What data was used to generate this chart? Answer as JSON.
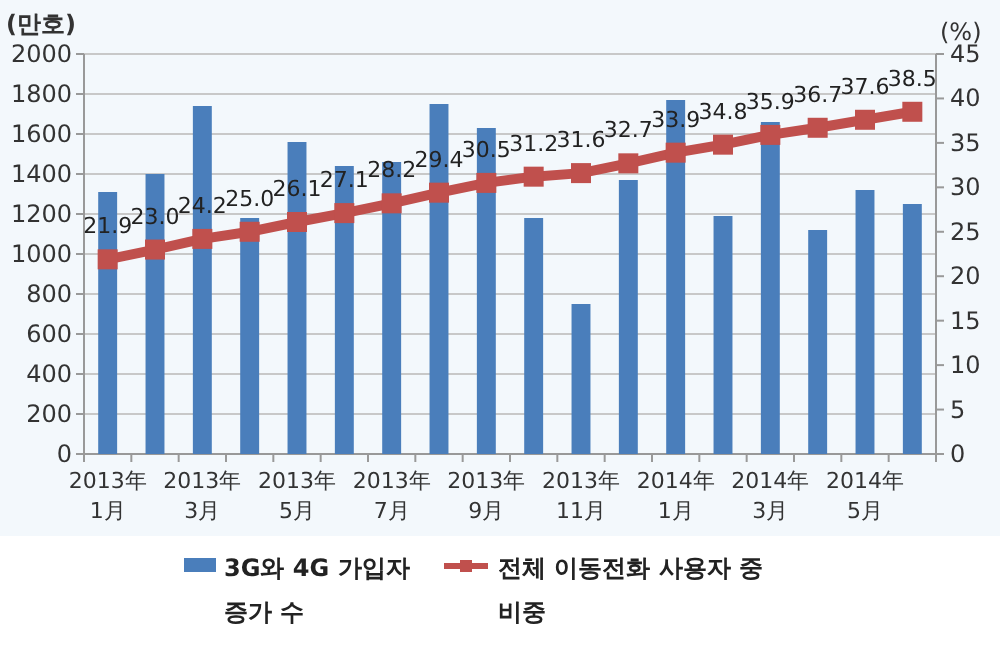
{
  "chart_data": {
    "type": "bar",
    "categories": [
      "2013年\n1月",
      null,
      "2013年\n3月",
      null,
      "2013年\n5月",
      null,
      "2013年\n7月",
      null,
      "2013年\n9月",
      null,
      "2013年\n11月",
      null,
      "2014年\n1月",
      null,
      "2014年\n3月",
      null,
      "2014年\n5月",
      null
    ],
    "series": [
      {
        "name": "3G와 4G 가입자\n증가 수",
        "color": "#4a7ebb",
        "values": [
          1310,
          1400,
          1740,
          1180,
          1560,
          1440,
          1460,
          1750,
          1630,
          1180,
          750,
          1370,
          1770,
          1190,
          1660,
          1120,
          1320,
          1250
        ]
      },
      {
        "name": "전체 이동전화 사용자 중\n비중",
        "type": "line",
        "axis": "y2",
        "color": "#c0504d",
        "marker": "square",
        "values": [
          21.9,
          23.0,
          24.2,
          25.0,
          26.1,
          27.1,
          28.2,
          29.4,
          30.5,
          31.2,
          31.6,
          32.7,
          33.9,
          34.8,
          35.9,
          36.7,
          37.6,
          38.5
        ],
        "value_labels": [
          "21.9",
          "23.0",
          "24.2",
          "25.0",
          "26.1",
          "27.1",
          "28.2",
          "29.4",
          "30.5",
          "31.2",
          "31.6",
          "32.7",
          "33.9",
          "34.8",
          "35.9",
          "36.7",
          "37.6",
          "38.5"
        ]
      }
    ],
    "ylabel": "(만호)",
    "y2label": "(%)",
    "ylim": [
      0,
      2000
    ],
    "yticks": [
      0,
      200,
      400,
      600,
      800,
      1000,
      1200,
      1400,
      1600,
      1800,
      2000
    ],
    "y2lim": [
      0,
      45
    ],
    "y2ticks": [
      0,
      5,
      10,
      15,
      20,
      25,
      30,
      35,
      40,
      45
    ],
    "grid": "y",
    "legend": "bottom"
  }
}
